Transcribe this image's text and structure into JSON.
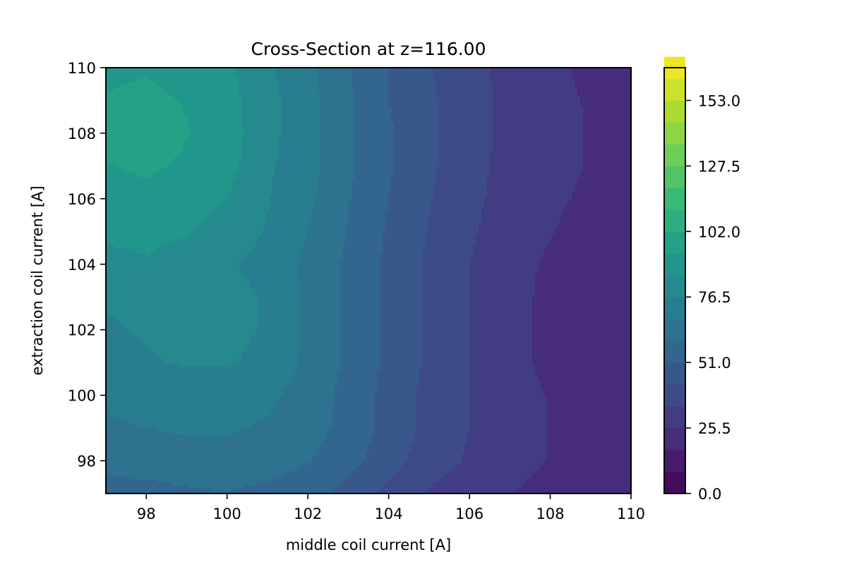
{
  "chart_data": {
    "type": "heatmap",
    "subtype": "filled-contour",
    "title": "Cross-Section at z=116.00",
    "xlabel": "middle coil current [A]",
    "ylabel": "extraction coil current [A]",
    "xlim": [
      97,
      110
    ],
    "ylim": [
      97,
      110
    ],
    "x_ticks": [
      98,
      100,
      102,
      104,
      106,
      108,
      110
    ],
    "y_ticks": [
      98,
      100,
      102,
      104,
      106,
      108,
      110
    ],
    "x_tick_labels": [
      "98",
      "100",
      "102",
      "104",
      "106",
      "108",
      "110"
    ],
    "y_tick_labels": [
      "98",
      "100",
      "102",
      "104",
      "106",
      "108",
      "110"
    ],
    "colormap": "viridis",
    "colorbar": {
      "min": 0.0,
      "max": 165.75,
      "level_step": 8.5,
      "ticks": [
        0.0,
        25.5,
        51.0,
        76.5,
        102.0,
        127.5,
        153.0
      ],
      "tick_labels": [
        "0.0",
        "25.5",
        "51.0",
        "76.5",
        "102.0",
        "127.5",
        "153.0"
      ]
    },
    "grid": false,
    "x": [
      97,
      98,
      99,
      100,
      101,
      102,
      103,
      104,
      105,
      106,
      107,
      108,
      109,
      110
    ],
    "y": [
      97,
      98,
      99,
      100,
      101,
      102,
      103,
      104,
      105,
      106,
      107,
      108,
      109,
      110
    ],
    "z": [
      [
        56,
        56,
        58,
        59,
        57,
        54,
        48,
        40,
        33,
        29,
        26,
        22,
        20,
        18
      ],
      [
        62,
        64,
        65,
        65,
        64,
        60,
        54,
        46,
        38,
        33,
        29,
        25,
        21,
        19
      ],
      [
        66,
        68,
        69,
        69,
        67,
        63,
        57,
        48,
        40,
        34,
        29,
        25,
        21,
        19
      ],
      [
        71,
        73,
        73,
        72,
        70,
        64,
        57,
        48,
        40,
        34,
        29,
        25,
        21,
        18
      ],
      [
        74,
        76,
        77,
        77,
        75,
        66,
        58,
        49,
        41,
        34,
        29,
        23,
        19,
        17
      ],
      [
        76,
        77,
        78,
        78,
        76,
        66,
        58,
        49,
        41,
        34,
        29,
        23,
        19,
        17
      ],
      [
        77,
        77,
        78,
        78,
        76,
        66,
        58,
        49,
        41,
        34,
        29,
        23,
        20,
        18
      ],
      [
        81,
        84,
        80,
        77,
        75,
        66,
        58,
        49,
        41,
        34,
        29,
        24,
        20,
        18
      ],
      [
        88,
        88,
        86,
        80,
        76,
        68,
        59,
        50,
        42,
        35,
        30,
        26,
        22,
        20
      ],
      [
        90,
        91,
        89,
        85,
        77,
        70,
        60,
        51,
        43,
        36,
        31,
        27,
        24,
        21
      ],
      [
        93,
        95,
        92,
        88,
        78,
        71,
        61,
        52,
        44,
        37,
        31,
        28,
        25,
        22
      ],
      [
        97,
        100,
        94,
        89,
        79,
        71,
        61,
        52,
        44,
        37,
        32,
        28,
        25,
        23
      ],
      [
        94,
        95,
        93,
        88,
        79,
        71,
        61,
        51,
        44,
        37,
        32,
        27,
        25,
        22
      ],
      [
        92,
        93,
        91,
        87,
        78,
        70,
        60,
        51,
        43,
        37,
        31,
        27,
        24,
        19
      ]
    ]
  }
}
